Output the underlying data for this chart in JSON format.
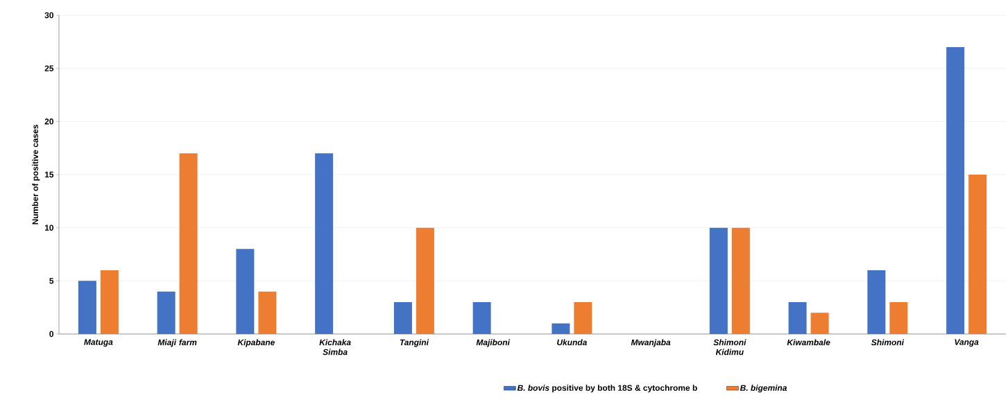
{
  "chart_data": {
    "type": "bar",
    "ylabel": "Number of positive cases",
    "categories": [
      "Matuga",
      "Miaji farm",
      "Kipabane",
      "Kichaka Simba",
      "Tangini",
      "Majiboni",
      "Ukunda",
      "Mwanjaba",
      "Shimoni Kidimu",
      "Kiwambale",
      "Shimoni",
      "Vanga"
    ],
    "series": [
      {
        "name": "*B. bovis* positive by both 18S & cytochrome b",
        "color": "#4472c4",
        "values": [
          5,
          4,
          8,
          17,
          3,
          3,
          1,
          0,
          10,
          3,
          6,
          27
        ]
      },
      {
        "name": "*B. bigemina*",
        "color": "#ed7d31",
        "values": [
          6,
          17,
          4,
          0,
          10,
          0,
          3,
          0,
          10,
          2,
          3,
          15
        ]
      }
    ],
    "ylim": [
      0,
      30
    ],
    "yticks": [
      0,
      5,
      10,
      15,
      20,
      25,
      30
    ],
    "grid": "y",
    "legend": "bottom"
  }
}
